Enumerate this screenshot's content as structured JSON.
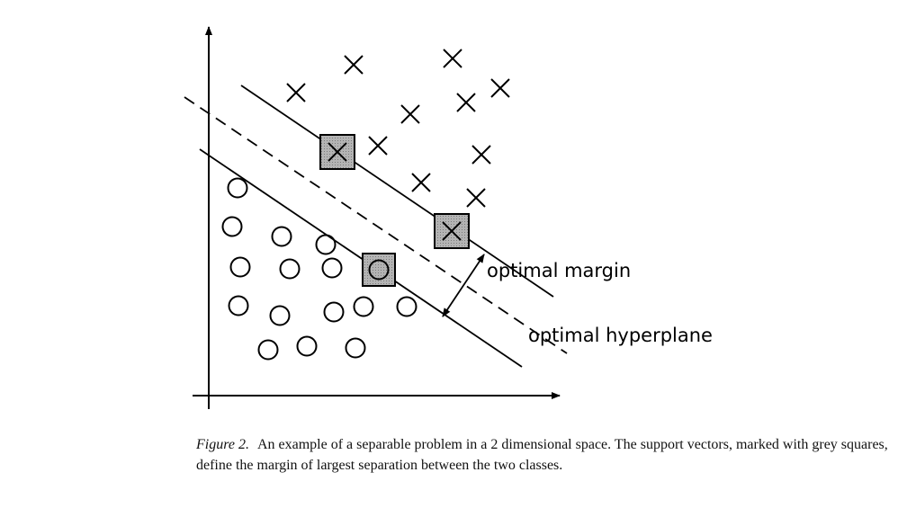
{
  "labels": {
    "margin": "optimal margin",
    "hyperplane": "optimal hyperplane"
  },
  "caption": {
    "figure_number": "Figure 2.",
    "text": "An example of a separable problem in a 2 dimensional space. The support vectors, marked with grey squares, define the margin of largest separation between the two classes."
  },
  "colors": {
    "ink": "#000000",
    "support_vector_fill": "#a8a8a8"
  }
}
